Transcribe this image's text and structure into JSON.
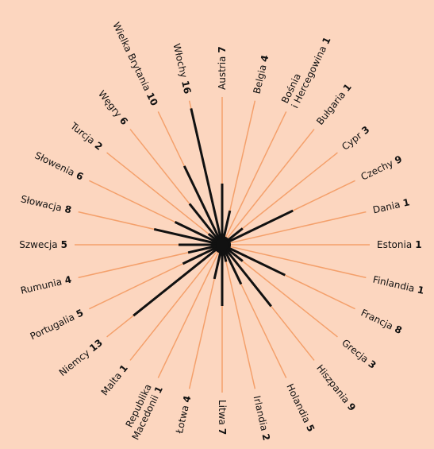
{
  "chart_data": {
    "type": "radial",
    "categories": [
      "Austria",
      "Belgia",
      "Bośnia i Hercegowina",
      "Bułgaria",
      "Cypr",
      "Czechy",
      "Dania",
      "Estonia",
      "Finlandia",
      "Francja",
      "Grecja",
      "Hiszpania",
      "Holandia",
      "Irlandia",
      "Litwa",
      "Łotwa",
      "Republika Macedonii",
      "Malta",
      "Niemcy",
      "Portugalia",
      "Rumunia",
      "Szwecja",
      "Słowacja",
      "Słowenia",
      "Turcja",
      "Węgry",
      "Wielka Brytania",
      "Włochy"
    ],
    "values": [
      7,
      4,
      1,
      1,
      3,
      9,
      1,
      1,
      1,
      8,
      3,
      9,
      5,
      2,
      7,
      4,
      1,
      1,
      13,
      5,
      4,
      5,
      8,
      6,
      2,
      6,
      10,
      16
    ],
    "color": "#111111",
    "spoke_color": "#f4a06b"
  }
}
